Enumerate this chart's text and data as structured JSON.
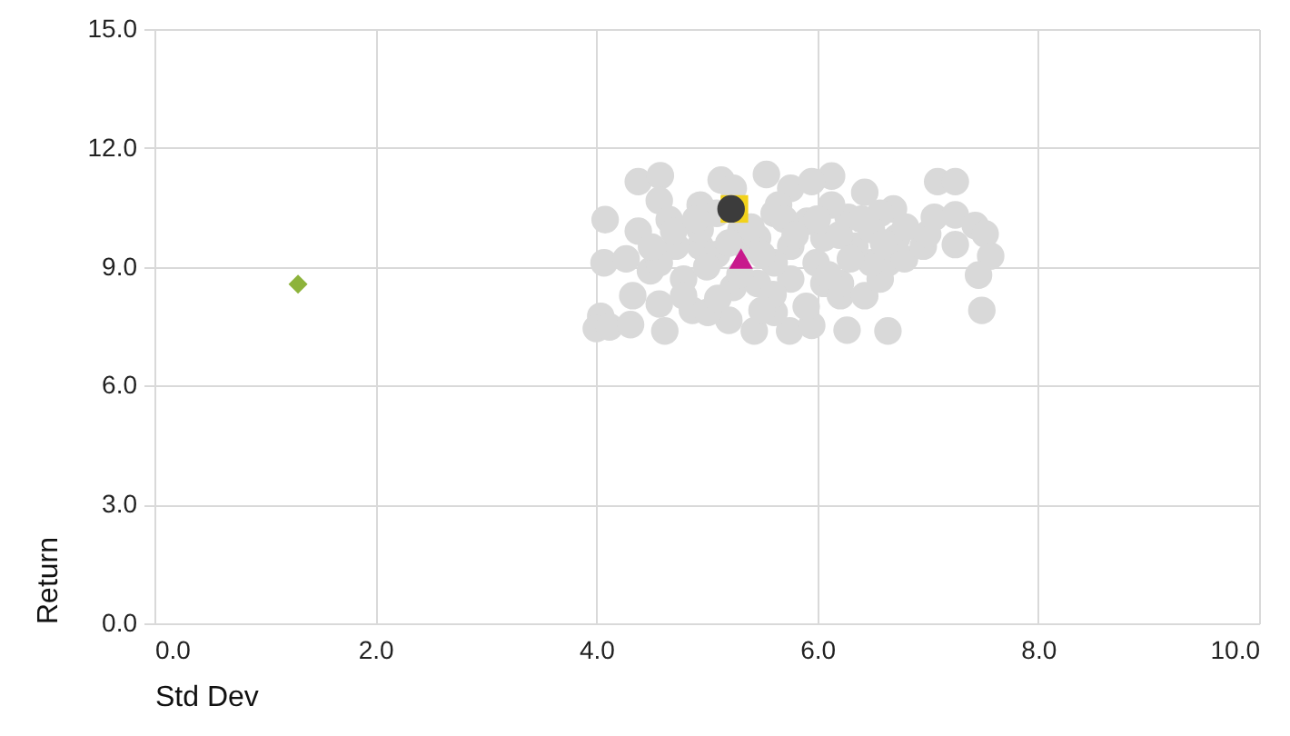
{
  "chart_data": {
    "type": "scatter",
    "xlabel": "Std Dev",
    "ylabel": "Return",
    "xlim": [
      0,
      10
    ],
    "ylim": [
      0,
      15
    ],
    "xticks": [
      {
        "value": 0,
        "label": "0.0"
      },
      {
        "value": 2,
        "label": "2.0"
      },
      {
        "value": 4,
        "label": "4.0"
      },
      {
        "value": 6,
        "label": "6.0"
      },
      {
        "value": 8,
        "label": "8.0"
      },
      {
        "value": 10,
        "label": "10.0"
      }
    ],
    "yticks": [
      {
        "value": 0,
        "label": "0.0"
      },
      {
        "value": 3,
        "label": "3.0"
      },
      {
        "value": 6,
        "label": "6.0"
      },
      {
        "value": 9,
        "label": "9.0"
      },
      {
        "value": 12,
        "label": "12.0"
      },
      {
        "value": 15,
        "label": "15.0"
      }
    ],
    "grid": true,
    "series": [
      {
        "color": "#d9d9d9",
        "marker": "circle",
        "x": [
          4.38,
          4.58,
          4.57,
          4.66,
          4.08,
          4.07,
          4.38,
          4.27,
          4.33,
          4.04,
          4.0,
          4.12,
          4.31,
          4.62,
          4.87,
          4.57,
          4.79,
          4.49,
          4.94,
          4.94,
          5.13,
          5.24,
          5.54,
          5.76,
          6.13,
          5.95,
          5.61,
          5.31,
          5.09,
          5.24,
          5.2,
          5.43,
          5.75,
          5.95,
          5.61,
          5.76,
          6.06,
          6.21,
          6.27,
          6.43,
          6.64,
          6.21,
          6.57,
          6.64,
          6.79,
          6.72,
          6.69,
          6.43,
          6.28,
          6.06,
          5.91,
          5.76,
          5.99,
          5.61,
          5.46,
          4.94,
          4.72,
          4.57,
          6.96,
          7.0,
          7.09,
          7.25,
          7.06,
          7.25,
          7.25,
          7.43,
          7.52,
          7.57,
          7.46,
          7.49,
          6.49,
          6.34,
          6.57,
          5.35,
          5.09,
          5.65,
          6.13,
          6.49,
          5.46,
          4.79,
          5.01,
          5.0,
          5.2,
          5.4,
          5.5,
          5.7,
          5.8,
          6.0,
          6.2,
          6.3,
          6.4,
          6.6,
          6.8,
          5.3,
          5.6,
          5.9,
          6.1,
          4.7,
          4.5,
          5.1,
          5.5,
          4.9
        ],
        "values": [
          11.15,
          11.3,
          10.67,
          10.19,
          10.19,
          9.1,
          9.9,
          9.2,
          8.27,
          7.75,
          7.44,
          7.48,
          7.54,
          7.38,
          7.9,
          8.06,
          8.69,
          8.9,
          9.52,
          10.56,
          11.19,
          10.98,
          11.33,
          10.98,
          11.29,
          11.15,
          10.35,
          9.94,
          9.31,
          8.48,
          7.65,
          7.38,
          7.38,
          7.52,
          7.85,
          8.69,
          8.58,
          8.27,
          7.4,
          8.27,
          7.38,
          8.58,
          8.69,
          9.1,
          9.2,
          9.73,
          10.46,
          10.88,
          10.25,
          9.73,
          10.15,
          9.52,
          9.1,
          9.1,
          8.58,
          9.94,
          9.52,
          9.1,
          9.52,
          9.83,
          11.15,
          11.15,
          10.25,
          10.31,
          9.56,
          10.04,
          9.83,
          9.27,
          8.79,
          7.9,
          9.1,
          9.52,
          10.35,
          9.52,
          10.35,
          10.56,
          10.56,
          9.94,
          9.73,
          8.27,
          7.85,
          9.0,
          9.6,
          10.0,
          9.3,
          10.2,
          9.8,
          10.2,
          9.8,
          9.2,
          10.2,
          9.6,
          10.0,
          8.8,
          8.3,
          8.0,
          8.8,
          9.9,
          9.5,
          8.2,
          7.9,
          10.2
        ]
      },
      {
        "color": "#f2d21b",
        "marker": "square",
        "x": [
          5.25
        ],
        "values": [
          10.46
        ]
      },
      {
        "color": "#3c3c3c",
        "marker": "circle",
        "x": [
          5.22
        ],
        "values": [
          10.46
        ]
      },
      {
        "color": "#c8198c",
        "marker": "triangle",
        "x": [
          5.31
        ],
        "values": [
          9.21
        ]
      },
      {
        "color": "#8db33b",
        "marker": "diamond",
        "x": [
          1.3
        ],
        "values": [
          8.56
        ]
      }
    ]
  }
}
